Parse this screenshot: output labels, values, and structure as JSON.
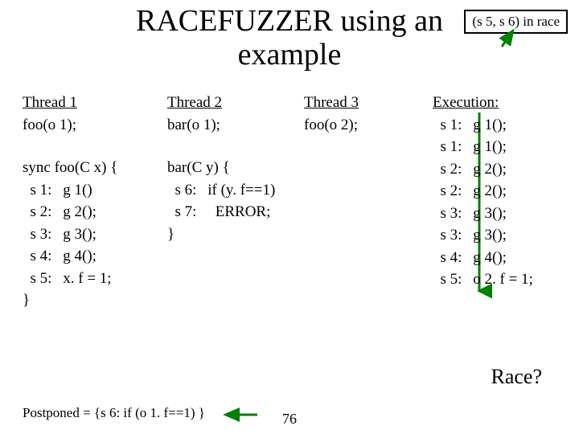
{
  "title_line1": "RACEFUZZER using an",
  "title_line2": "example",
  "race_box": "(s 5, s 6) in race",
  "thread1_hdr": "Thread 1",
  "thread1_call": "foo(o 1);",
  "thread2_hdr": "Thread 2",
  "thread2_call": "bar(o 1);",
  "thread3_hdr": "Thread 3",
  "thread3_call": "foo(o 2);",
  "exec_hdr": "Execution:",
  "foo_sig": "sync foo(C x) {",
  "foo_body": [
    {
      "s": "s 1:",
      "c": "g 1()"
    },
    {
      "s": "s 2:",
      "c": "g 2();"
    },
    {
      "s": "s 3:",
      "c": "g 3();"
    },
    {
      "s": "s 4:",
      "c": "g 4();"
    },
    {
      "s": "s 5:",
      "c": "x. f = 1;"
    }
  ],
  "foo_close": "}",
  "bar_sig": "bar(C y) {",
  "bar_body": [
    {
      "s": "s 6:",
      "c": "if (y. f==1)"
    },
    {
      "s": "s 7:",
      "c": "  ERROR;"
    }
  ],
  "bar_close": "}",
  "exec": [
    {
      "s": "s 1:",
      "c": "g 1();"
    },
    {
      "s": "s 1:",
      "c": "g 1();"
    },
    {
      "s": "s 2:",
      "c": "g 2();"
    },
    {
      "s": "s 2:",
      "c": "g 2();"
    },
    {
      "s": "s 3:",
      "c": "g 3();"
    },
    {
      "s": "s 3:",
      "c": "g 3();"
    },
    {
      "s": "s 4:",
      "c": "g 4();"
    },
    {
      "s": "s 5:",
      "c": "o 2. f = 1;"
    }
  ],
  "race_q": "Race?",
  "postponed_prefix": "Postponed = {",
  "postponed_body": "s 6:  if (o 1. f==1) ",
  "postponed_suffix": "}",
  "page_num": "76",
  "colors": {
    "green": "#008000",
    "black": "#000000"
  },
  "arrows": {
    "to_racebox": {
      "stroke": "#008000",
      "stroke_width": 3
    },
    "exec_down": {
      "stroke": "#008000",
      "stroke_width": 3
    },
    "to_postponed": {
      "stroke": "#008000",
      "stroke_width": 3
    }
  }
}
